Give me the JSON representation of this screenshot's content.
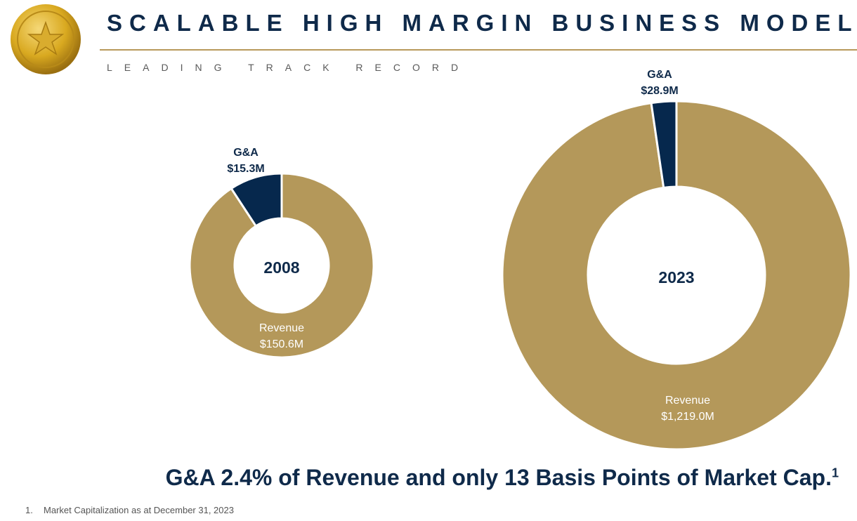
{
  "header": {
    "title": "SCALABLE HIGH MARGIN BUSINESS MODEL",
    "subtitle": "LEADING TRACK RECORD"
  },
  "headline": {
    "text": "G&A 2.4% of Revenue and only 13 Basis Points of Market Cap.",
    "footnote_marker": "1"
  },
  "footnote": {
    "number": "1.",
    "text": "Market Capitalization as at December 31, 2023"
  },
  "logo": {
    "icon": "gold-coin-star-icon",
    "colors": [
      "#f5d877",
      "#d9a920",
      "#9a6f10"
    ]
  },
  "colors": {
    "revenue": "#b4985a",
    "ga": "#06284d",
    "text_dark": "#0f2a4a"
  },
  "chart_data": [
    {
      "type": "donut",
      "center_label": "2008",
      "slices": [
        {
          "name": "Revenue",
          "value": 150.6,
          "label": "$150.6M",
          "color": "#b4985a"
        },
        {
          "name": "G&A",
          "value": 15.3,
          "label": "$15.3M",
          "color": "#06284d"
        }
      ]
    },
    {
      "type": "donut",
      "center_label": "2023",
      "slices": [
        {
          "name": "Revenue",
          "value": 1219.0,
          "label": "$1,219.0M",
          "color": "#b4985a"
        },
        {
          "name": "G&A",
          "value": 28.9,
          "label": "$28.9M",
          "color": "#06284d"
        }
      ]
    }
  ]
}
